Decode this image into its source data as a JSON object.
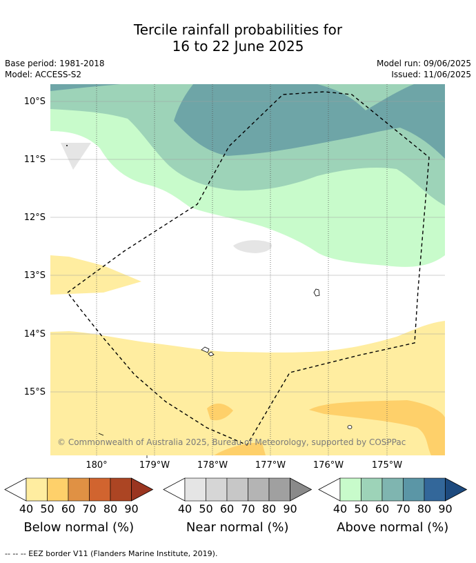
{
  "header": {
    "title_line1": "Tercile rainfall probabilities for",
    "title_line2": "16 to 22 June 2025",
    "base_period": "Base period: 1981-2018",
    "model": "Model: ACCESS-S2",
    "model_run": "Model run: 09/06/2025",
    "issued": "Issued: 11/06/2025"
  },
  "map": {
    "lat_labels": [
      "10°S",
      "11°S",
      "12°S",
      "13°S",
      "14°S",
      "15°S"
    ],
    "lon_labels": [
      "180°",
      "179°W",
      "178°W",
      "177°W",
      "176°W",
      "175°W"
    ],
    "copyright": "© Commonwealth of Australia 2025, Bureau of Meteorology, supported by COSPPac",
    "colors": {
      "below_40": "#ffeda0",
      "below_50": "#fed06a",
      "near_40": "#e5e5e5",
      "above_40": "#c8fbcb",
      "above_50": "#9dd3b8",
      "above_60": "#6ea5a7",
      "land": "#ffffff"
    }
  },
  "colorbars": [
    {
      "title": "Below normal (%)",
      "ticks": [
        "40",
        "50",
        "60",
        "70",
        "80",
        "90"
      ],
      "colors": [
        "#ffeda0",
        "#fed06a",
        "#e09144",
        "#d1642f",
        "#ac4523",
        "#9a3520"
      ]
    },
    {
      "title": "Near normal (%)",
      "ticks": [
        "40",
        "50",
        "60",
        "70",
        "80",
        "90"
      ],
      "colors": [
        "#e5e5e5",
        "#d6d6d6",
        "#c7c7c7",
        "#b4b4b4",
        "#a0a0a0",
        "#8a8a8a"
      ]
    },
    {
      "title": "Above normal (%)",
      "ticks": [
        "40",
        "50",
        "60",
        "70",
        "80",
        "90"
      ],
      "colors": [
        "#c8fbcb",
        "#9dd3b8",
        "#7fb5b0",
        "#5b96a6",
        "#33679a",
        "#1d4a7e"
      ]
    }
  ],
  "footnote": "--  --  -- EEZ border V11 (Flanders Marine Institute, 2019)."
}
